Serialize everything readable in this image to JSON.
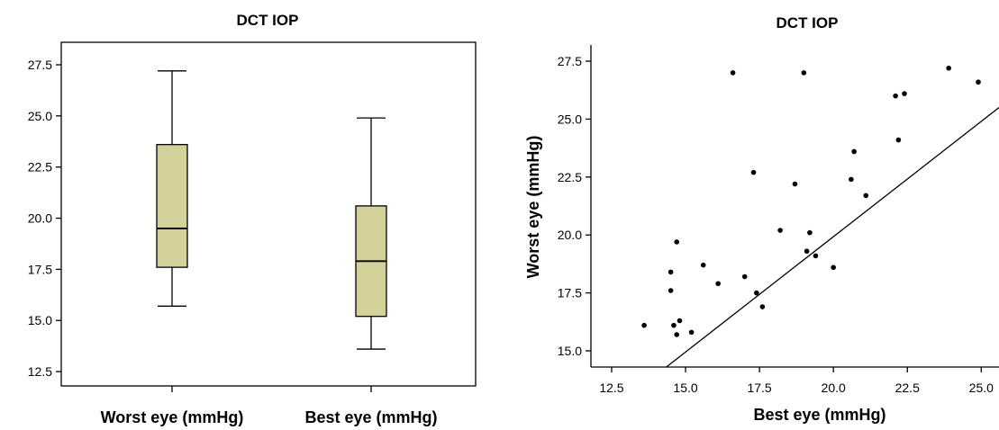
{
  "chart_data": [
    {
      "type": "box",
      "title": "DCT IOP",
      "xlabel": "",
      "ylabel": "",
      "ylim": [
        11.8,
        28.6
      ],
      "yticks": [
        12.5,
        15.0,
        17.5,
        20.0,
        22.5,
        25.0,
        27.5
      ],
      "grid": false,
      "box_color": "#d4d09a",
      "categories": [
        "Worst eye (mmHg)",
        "Best eye (mmHg)"
      ],
      "boxes": [
        {
          "min": 15.7,
          "q1": 17.6,
          "median": 19.5,
          "q3": 23.6,
          "max": 27.2
        },
        {
          "min": 13.6,
          "q1": 15.2,
          "median": 17.9,
          "q3": 20.6,
          "max": 24.9
        }
      ]
    },
    {
      "type": "scatter",
      "title": "DCT IOP",
      "xlabel": "Best eye (mmHg)",
      "ylabel": "Worst eye (mmHg)",
      "xlim": [
        11.8,
        25.6
      ],
      "ylim": [
        14.3,
        28.2
      ],
      "xticks": [
        12.5,
        15.0,
        17.5,
        20.0,
        22.5,
        25.0
      ],
      "yticks": [
        15.0,
        17.5,
        20.0,
        22.5,
        25.0,
        27.5
      ],
      "grid": false,
      "reference_line": {
        "x": [
          14.35,
          25.6
        ],
        "y": [
          14.3,
          25.5
        ]
      },
      "points": [
        [
          13.6,
          16.1
        ],
        [
          14.5,
          17.6
        ],
        [
          14.5,
          18.4
        ],
        [
          14.6,
          16.1
        ],
        [
          14.7,
          19.7
        ],
        [
          14.7,
          15.7
        ],
        [
          14.8,
          16.3
        ],
        [
          15.2,
          15.8
        ],
        [
          15.6,
          18.7
        ],
        [
          16.1,
          17.9
        ],
        [
          16.6,
          27.0
        ],
        [
          17.0,
          18.2
        ],
        [
          17.3,
          22.7
        ],
        [
          17.4,
          17.5
        ],
        [
          17.6,
          16.9
        ],
        [
          18.2,
          20.2
        ],
        [
          18.7,
          22.2
        ],
        [
          19.0,
          27.0
        ],
        [
          19.1,
          19.3
        ],
        [
          19.2,
          20.1
        ],
        [
          19.4,
          19.1
        ],
        [
          20.0,
          18.6
        ],
        [
          20.6,
          22.4
        ],
        [
          20.7,
          23.6
        ],
        [
          21.1,
          21.7
        ],
        [
          22.1,
          26.0
        ],
        [
          22.2,
          24.1
        ],
        [
          22.4,
          26.1
        ],
        [
          23.9,
          27.2
        ],
        [
          24.9,
          26.6
        ]
      ]
    }
  ]
}
